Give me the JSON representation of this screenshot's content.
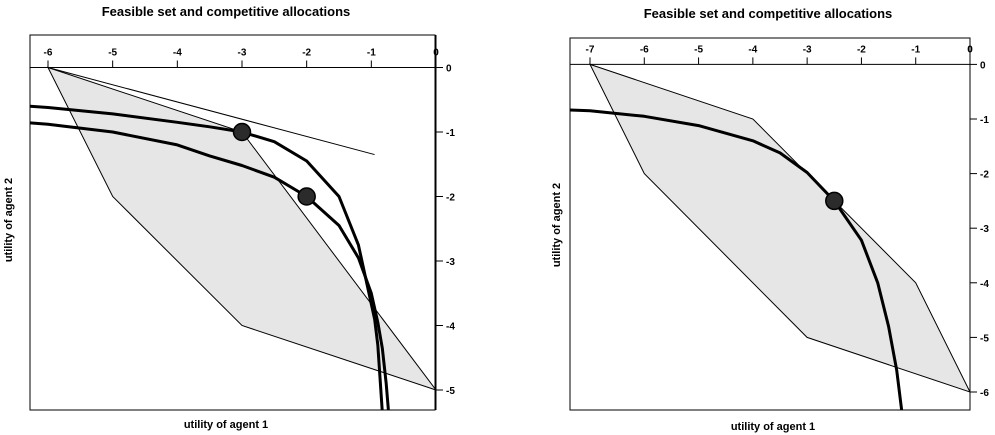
{
  "chart_data": [
    {
      "type": "line",
      "title": "Feasible set and competitive allocations",
      "xlabel": "utility of agent 1",
      "ylabel": "utility of agent 2",
      "xlim": [
        -6.5,
        0.3
      ],
      "ylim": [
        -5.35,
        0.35
      ],
      "x_ticks": [
        -6,
        -5,
        -4,
        -3,
        -2,
        -1,
        0
      ],
      "x_tick_labels": [
        "-6",
        "-5",
        "-4",
        "-3",
        "-2",
        "-1",
        "0"
      ],
      "y_ticks": [
        0,
        -1,
        -2,
        -3,
        -4,
        -5
      ],
      "y_tick_labels": [
        "0",
        "-1",
        "-2",
        "-3",
        "-4",
        "-5"
      ],
      "x_axis_position": "top",
      "y_axis_position": "right",
      "grid": false,
      "feasible_set": [
        [
          -6,
          0
        ],
        [
          -5,
          -2
        ],
        [
          -3,
          -4
        ],
        [
          0,
          -5
        ],
        [
          -3,
          -1
        ],
        [
          -6,
          0
        ]
      ],
      "tangent_line": [
        [
          -6,
          0
        ],
        [
          -0.95,
          -1.35
        ]
      ],
      "series": [
        {
          "x": [
            -7.0,
            -6.0,
            -5.0,
            -4.0,
            -3.5,
            -3.0,
            -2.5,
            -2.0,
            -1.5,
            -1.2,
            -0.95,
            -0.9,
            -0.82
          ],
          "y": [
            -0.55,
            -0.62,
            -0.72,
            -0.85,
            -0.92,
            -1.0,
            -1.15,
            -1.45,
            -2.0,
            -2.75,
            -3.9,
            -4.3,
            -5.5
          ]
        },
        {
          "x": [
            -7.0,
            -6.0,
            -5.0,
            -4.0,
            -3.5,
            -3.0,
            -2.5,
            -2.0,
            -1.5,
            -1.2,
            -1.0,
            -0.9,
            -0.83,
            -0.77,
            -0.72
          ],
          "y": [
            -0.8,
            -0.88,
            -1.0,
            -1.2,
            -1.37,
            -1.52,
            -1.7,
            -2.0,
            -2.45,
            -2.95,
            -3.5,
            -3.95,
            -4.35,
            -4.9,
            -5.5
          ]
        }
      ],
      "points": [
        {
          "x": -3,
          "y": -1
        },
        {
          "x": -2,
          "y": -2
        }
      ]
    },
    {
      "type": "line",
      "title": "Feasible set and competitive allocations",
      "xlabel": "utility of agent 1",
      "ylabel": "utility of agent 2",
      "xlim": [
        -7.7,
        0.3
      ],
      "ylim": [
        -6.35,
        0.35
      ],
      "x_ticks": [
        -7,
        -6,
        -5,
        -4,
        -3,
        -2,
        -1,
        0
      ],
      "x_tick_labels": [
        "-7",
        "-6",
        "-5",
        "-4",
        "-3",
        "-2",
        "-1",
        "0"
      ],
      "y_ticks": [
        0,
        -1,
        -2,
        -3,
        -4,
        -5,
        -6
      ],
      "y_tick_labels": [
        "0",
        "-1",
        "-2",
        "-3",
        "-4",
        "-5",
        "-6"
      ],
      "x_axis_position": "top",
      "y_axis_position": "right",
      "grid": false,
      "feasible_set": [
        [
          -7,
          0
        ],
        [
          -4,
          -1
        ],
        [
          -1,
          -4
        ],
        [
          0,
          -6
        ],
        [
          -3,
          -5
        ],
        [
          -6,
          -2
        ],
        [
          -7,
          0
        ]
      ],
      "series": [
        {
          "x": [
            -8.2,
            -7.0,
            -6.0,
            -5.0,
            -4.0,
            -3.5,
            -3.0,
            -2.5,
            -2.0,
            -1.7,
            -1.5,
            -1.35,
            -1.25
          ],
          "y": [
            -0.8,
            -0.85,
            -0.95,
            -1.12,
            -1.4,
            -1.62,
            -1.98,
            -2.5,
            -3.22,
            -4.0,
            -4.8,
            -5.6,
            -6.4
          ]
        }
      ],
      "points": [
        {
          "x": -2.5,
          "y": -2.5
        }
      ]
    }
  ]
}
